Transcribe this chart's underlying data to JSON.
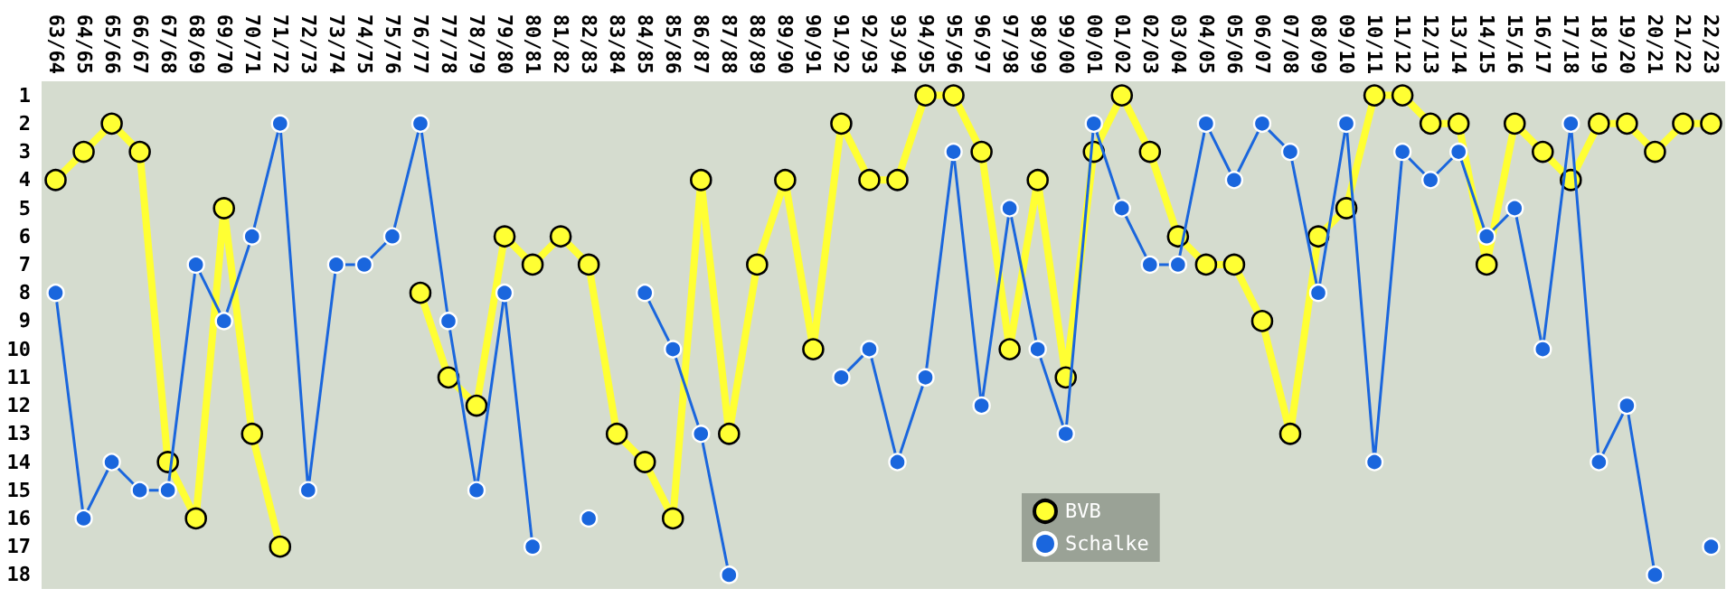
{
  "chart_data": {
    "type": "line",
    "categories": [
      "63/64",
      "64/65",
      "65/66",
      "66/67",
      "67/68",
      "68/69",
      "69/70",
      "70/71",
      "71/72",
      "72/73",
      "73/74",
      "74/75",
      "75/76",
      "76/77",
      "77/78",
      "78/79",
      "79/80",
      "80/81",
      "81/82",
      "82/83",
      "83/84",
      "84/85",
      "85/86",
      "86/87",
      "87/88",
      "88/89",
      "89/90",
      "90/91",
      "91/92",
      "92/93",
      "93/94",
      "94/95",
      "95/96",
      "96/97",
      "97/98",
      "98/99",
      "99/00",
      "00/01",
      "01/02",
      "02/03",
      "03/04",
      "04/05",
      "05/06",
      "06/07",
      "07/08",
      "08/09",
      "09/10",
      "10/11",
      "11/12",
      "12/13",
      "13/14",
      "14/15",
      "15/16",
      "16/17",
      "17/18",
      "18/19",
      "19/20",
      "20/21",
      "21/22",
      "22/23"
    ],
    "series": [
      {
        "name": "BVB",
        "color": "#ffff33",
        "values": [
          4,
          3,
          2,
          3,
          14,
          16,
          5,
          13,
          17,
          null,
          null,
          null,
          null,
          8,
          11,
          12,
          6,
          7,
          6,
          7,
          13,
          14,
          16,
          4,
          13,
          7,
          4,
          10,
          2,
          4,
          4,
          1,
          1,
          3,
          10,
          4,
          11,
          3,
          1,
          3,
          6,
          7,
          7,
          9,
          13,
          6,
          5,
          1,
          1,
          2,
          2,
          7,
          2,
          3,
          4,
          2,
          2,
          3,
          2,
          2
        ]
      },
      {
        "name": "Schalke",
        "color": "#1a66dd",
        "values": [
          8,
          16,
          14,
          15,
          15,
          7,
          9,
          6,
          2,
          15,
          7,
          7,
          6,
          2,
          9,
          15,
          8,
          17,
          null,
          16,
          null,
          8,
          10,
          13,
          18,
          null,
          null,
          null,
          11,
          10,
          14,
          11,
          3,
          12,
          5,
          10,
          13,
          2,
          5,
          7,
          7,
          2,
          4,
          2,
          3,
          8,
          2,
          14,
          3,
          4,
          3,
          6,
          5,
          10,
          2,
          14,
          12,
          18,
          null,
          17
        ]
      }
    ],
    "ylim": [
      18.5,
      0.5
    ],
    "yticks": [
      1,
      2,
      3,
      4,
      5,
      6,
      7,
      8,
      9,
      10,
      11,
      12,
      13,
      14,
      15,
      16,
      17,
      18
    ],
    "legend": "bottom",
    "marker": "circle",
    "grid": false
  }
}
